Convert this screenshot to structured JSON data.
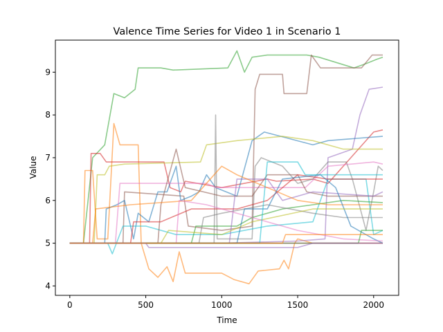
{
  "chart_data": {
    "type": "line",
    "title": "Valence Time Series for Video 1 in Scenario 1",
    "xlabel": "Time",
    "ylabel": "Value",
    "xlim": [
      -95,
      2165
    ],
    "ylim": [
      3.78,
      9.75
    ],
    "xticks": [
      0,
      500,
      1000,
      1500,
      2000
    ],
    "yticks": [
      4,
      5,
      6,
      7,
      8,
      9
    ],
    "grid": false,
    "legend": "none",
    "series": [
      {
        "color": "#2ca02c",
        "points": [
          [
            0,
            5
          ],
          [
            90,
            5
          ],
          [
            150,
            7
          ],
          [
            230,
            7.3
          ],
          [
            290,
            8.5
          ],
          [
            360,
            8.4
          ],
          [
            430,
            8.6
          ],
          [
            450,
            9.1
          ],
          [
            600,
            9.1
          ],
          [
            680,
            9.05
          ],
          [
            1040,
            9.1
          ],
          [
            1100,
            9.5
          ],
          [
            1150,
            9.0
          ],
          [
            1200,
            9.35
          ],
          [
            1300,
            9.4
          ],
          [
            1560,
            9.4
          ],
          [
            1640,
            9.35
          ],
          [
            1870,
            9.1
          ],
          [
            1950,
            9.2
          ],
          [
            2020,
            9.3
          ],
          [
            2060,
            9.35
          ]
        ]
      },
      {
        "color": "#8c564b",
        "points": [
          [
            0,
            5
          ],
          [
            350,
            5
          ],
          [
            360,
            6.2
          ],
          [
            750,
            6.1
          ],
          [
            780,
            5.4
          ],
          [
            1000,
            5.3
          ],
          [
            1200,
            5.4
          ],
          [
            1220,
            8.6
          ],
          [
            1250,
            8.95
          ],
          [
            1400,
            8.95
          ],
          [
            1410,
            8.5
          ],
          [
            1560,
            8.5
          ],
          [
            1590,
            9.4
          ],
          [
            1650,
            9.1
          ],
          [
            1920,
            9.1
          ],
          [
            1990,
            9.4
          ],
          [
            2060,
            9.4
          ]
        ]
      },
      {
        "color": "#ff7f0e",
        "points": [
          [
            0,
            5
          ],
          [
            90,
            5
          ],
          [
            100,
            6.7
          ],
          [
            150,
            6.7
          ],
          [
            180,
            5.1
          ],
          [
            250,
            5.1
          ],
          [
            290,
            7.8
          ],
          [
            330,
            7.3
          ],
          [
            450,
            7.3
          ],
          [
            470,
            5.0
          ],
          [
            520,
            4.4
          ],
          [
            580,
            4.2
          ],
          [
            640,
            4.45
          ],
          [
            680,
            4.1
          ],
          [
            720,
            4.8
          ],
          [
            760,
            4.3
          ],
          [
            1000,
            4.3
          ],
          [
            1080,
            4.15
          ],
          [
            1180,
            4.05
          ],
          [
            1240,
            4.35
          ],
          [
            1380,
            4.4
          ],
          [
            1410,
            4.6
          ],
          [
            1440,
            4.4
          ],
          [
            1480,
            5.0
          ],
          [
            1500,
            5.1
          ],
          [
            1600,
            5.0
          ],
          [
            2060,
            5.0
          ]
        ]
      },
      {
        "color": "#9467bd",
        "points": [
          [
            0,
            5
          ],
          [
            1000,
            5
          ],
          [
            1500,
            5.05
          ],
          [
            1680,
            5.1
          ],
          [
            1700,
            7.0
          ],
          [
            1860,
            7.2
          ],
          [
            1910,
            8.0
          ],
          [
            1970,
            8.6
          ],
          [
            2060,
            8.65
          ]
        ]
      },
      {
        "color": "#d62728",
        "points": [
          [
            0,
            5
          ],
          [
            130,
            5
          ],
          [
            140,
            7.1
          ],
          [
            200,
            7.1
          ],
          [
            240,
            6.9
          ],
          [
            620,
            6.9
          ],
          [
            660,
            6.3
          ],
          [
            730,
            6.2
          ],
          [
            760,
            6.45
          ],
          [
            1000,
            6.3
          ],
          [
            1300,
            6.5
          ],
          [
            1360,
            6.45
          ],
          [
            1600,
            6.5
          ],
          [
            1700,
            6.4
          ],
          [
            2000,
            7.6
          ],
          [
            2060,
            7.65
          ]
        ]
      },
      {
        "color": "#1f77b4",
        "points": [
          [
            0,
            5
          ],
          [
            230,
            5
          ],
          [
            240,
            5.8
          ],
          [
            310,
            5.9
          ],
          [
            360,
            6.0
          ],
          [
            420,
            5.1
          ],
          [
            450,
            5.7
          ],
          [
            520,
            5.5
          ],
          [
            580,
            6.2
          ],
          [
            640,
            6.2
          ],
          [
            700,
            6.8
          ],
          [
            730,
            6.0
          ],
          [
            800,
            6.1
          ],
          [
            850,
            6.2
          ],
          [
            900,
            6.6
          ],
          [
            960,
            6.3
          ],
          [
            1100,
            6.1
          ],
          [
            1200,
            7.4
          ],
          [
            1280,
            7.6
          ],
          [
            1600,
            7.3
          ],
          [
            1700,
            7.4
          ],
          [
            2060,
            7.5
          ]
        ]
      },
      {
        "color": "#bcbd22",
        "points": [
          [
            0,
            5
          ],
          [
            160,
            5
          ],
          [
            180,
            6.6
          ],
          [
            230,
            6.6
          ],
          [
            260,
            6.8
          ],
          [
            360,
            6.85
          ],
          [
            860,
            6.9
          ],
          [
            900,
            7.3
          ],
          [
            1100,
            7.4
          ],
          [
            1400,
            7.5
          ],
          [
            1600,
            7.4
          ],
          [
            1800,
            7.2
          ],
          [
            2060,
            7.2
          ]
        ]
      },
      {
        "color": "#7f7f7f",
        "points": [
          [
            0,
            5
          ],
          [
            950,
            5
          ],
          [
            960,
            8.0
          ],
          [
            970,
            5.1
          ],
          [
            1200,
            5.1
          ],
          [
            1220,
            6.8
          ],
          [
            1260,
            7.0
          ],
          [
            1400,
            6.8
          ],
          [
            1500,
            6.4
          ],
          [
            1600,
            6.5
          ],
          [
            1700,
            6.9
          ],
          [
            1820,
            6.9
          ],
          [
            1860,
            6.5
          ],
          [
            1950,
            5.3
          ],
          [
            2000,
            6.2
          ],
          [
            2030,
            6.8
          ],
          [
            2060,
            6.7
          ]
        ]
      },
      {
        "color": "#e377c2",
        "points": [
          [
            0,
            5
          ],
          [
            300,
            5
          ],
          [
            330,
            6.4
          ],
          [
            900,
            6.4
          ],
          [
            960,
            6.3
          ],
          [
            1300,
            6.3
          ],
          [
            1550,
            6.3
          ],
          [
            1700,
            6.8
          ],
          [
            2000,
            6.9
          ],
          [
            2060,
            6.85
          ]
        ]
      },
      {
        "color": "#17becf",
        "points": [
          [
            0,
            5
          ],
          [
            250,
            5
          ],
          [
            280,
            4.75
          ],
          [
            350,
            5.4
          ],
          [
            500,
            5.4
          ],
          [
            700,
            5.2
          ],
          [
            1000,
            5.2
          ],
          [
            1300,
            5.4
          ],
          [
            1600,
            5.5
          ],
          [
            1700,
            6.5
          ],
          [
            1950,
            6.5
          ],
          [
            2000,
            5.2
          ],
          [
            2060,
            5.3
          ]
        ]
      },
      {
        "color": "#2ca02c",
        "points": [
          [
            0,
            5
          ],
          [
            800,
            5
          ],
          [
            830,
            5.4
          ],
          [
            1100,
            5.4
          ],
          [
            1200,
            5.6
          ],
          [
            1400,
            5.8
          ],
          [
            1600,
            5.9
          ],
          [
            1800,
            6.0
          ],
          [
            2060,
            5.95
          ]
        ]
      },
      {
        "color": "#8c564b",
        "points": [
          [
            0,
            5
          ],
          [
            580,
            5
          ],
          [
            600,
            5.9
          ],
          [
            700,
            7.2
          ],
          [
            760,
            6.3
          ],
          [
            1000,
            6.1
          ],
          [
            1200,
            6.1
          ],
          [
            1300,
            6.6
          ],
          [
            1500,
            6.6
          ],
          [
            1560,
            6.2
          ],
          [
            1700,
            6.1
          ],
          [
            2060,
            6.1
          ]
        ]
      },
      {
        "color": "#9467bd",
        "points": [
          [
            0,
            5
          ],
          [
            1050,
            5
          ],
          [
            1100,
            6.5
          ],
          [
            1300,
            6.5
          ],
          [
            1400,
            6.0
          ],
          [
            1600,
            6.2
          ],
          [
            2000,
            6.1
          ],
          [
            2060,
            6.2
          ]
        ]
      },
      {
        "color": "#ff7f0e",
        "points": [
          [
            0,
            5
          ],
          [
            150,
            5
          ],
          [
            170,
            5.8
          ],
          [
            400,
            5.9
          ],
          [
            800,
            6.0
          ],
          [
            1000,
            6.8
          ],
          [
            1100,
            6.6
          ],
          [
            1300,
            6.3
          ],
          [
            1500,
            6.0
          ],
          [
            1700,
            5.9
          ],
          [
            2000,
            5.9
          ],
          [
            2060,
            5.9
          ]
        ]
      },
      {
        "color": "#7f7f7f",
        "points": [
          [
            0,
            5
          ],
          [
            850,
            5
          ],
          [
            880,
            5.6
          ],
          [
            1000,
            5.7
          ],
          [
            1300,
            5.9
          ],
          [
            1600,
            5.7
          ],
          [
            1800,
            5.6
          ],
          [
            2060,
            5.6
          ]
        ]
      },
      {
        "color": "#d62728",
        "points": [
          [
            0,
            5
          ],
          [
            400,
            5
          ],
          [
            420,
            5.5
          ],
          [
            600,
            5.5
          ],
          [
            800,
            5.8
          ],
          [
            1100,
            5.8
          ],
          [
            1300,
            6.0
          ],
          [
            1500,
            6.6
          ],
          [
            1700,
            6.5
          ],
          [
            2060,
            6.5
          ]
        ]
      },
      {
        "color": "#1f77b4",
        "points": [
          [
            0,
            5
          ],
          [
            1100,
            5
          ],
          [
            1150,
            5.8
          ],
          [
            1300,
            5.8
          ],
          [
            1400,
            6.5
          ],
          [
            1650,
            6.6
          ],
          [
            1750,
            6.3
          ],
          [
            1850,
            5.4
          ],
          [
            2000,
            5.1
          ],
          [
            2060,
            5.0
          ]
        ]
      },
      {
        "color": "#bcbd22",
        "points": [
          [
            0,
            5
          ],
          [
            600,
            5
          ],
          [
            650,
            5.3
          ],
          [
            1000,
            5.2
          ],
          [
            1200,
            5.5
          ],
          [
            1600,
            5.8
          ],
          [
            2060,
            5.8
          ]
        ]
      },
      {
        "color": "#e377c2",
        "points": [
          [
            0,
            5
          ],
          [
            700,
            5
          ],
          [
            720,
            6.0
          ],
          [
            900,
            5.9
          ],
          [
            1200,
            5.6
          ],
          [
            1500,
            5.3
          ],
          [
            1800,
            5.1
          ],
          [
            2060,
            5.05
          ]
        ]
      },
      {
        "color": "#17becf",
        "points": [
          [
            0,
            5
          ],
          [
            1250,
            5
          ],
          [
            1300,
            6.9
          ],
          [
            1500,
            6.9
          ],
          [
            1550,
            6.6
          ],
          [
            2060,
            6.6
          ]
        ]
      },
      {
        "color": "#2ca02c",
        "points": [
          [
            0,
            5
          ],
          [
            1900,
            5
          ],
          [
            1920,
            5.3
          ],
          [
            2060,
            5.3
          ]
        ]
      },
      {
        "color": "#8c564b",
        "points": [
          [
            0,
            5
          ],
          [
            2060,
            5
          ]
        ]
      },
      {
        "color": "#9467bd",
        "points": [
          [
            0,
            5
          ],
          [
            500,
            5
          ],
          [
            520,
            4.9
          ],
          [
            1500,
            4.9
          ],
          [
            1600,
            5.0
          ],
          [
            2060,
            5.0
          ]
        ]
      },
      {
        "color": "#ff7f0e",
        "points": [
          [
            0,
            5
          ],
          [
            1400,
            5
          ],
          [
            1420,
            5.2
          ],
          [
            2060,
            5.2
          ]
        ]
      }
    ]
  }
}
